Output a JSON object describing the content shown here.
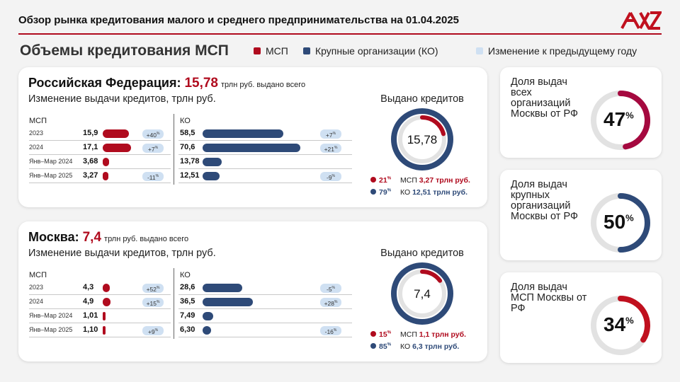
{
  "header": {
    "title": "Обзор рынка кредитования малого и среднего предпринимательства на 01.04.2025"
  },
  "section_title": "Объемы кредитования МСП",
  "legend": [
    {
      "label": "МСП",
      "color": "#b00b1e"
    },
    {
      "label": "Крупные организации (КО)",
      "color": "#2e4a78"
    },
    {
      "label": "Изменение к предыдущему году",
      "color": "#cfe0f2"
    }
  ],
  "colors": {
    "msp": "#b00b1e",
    "ko": "#2e4a78",
    "change": "#cfe0f2",
    "track": "#e2e2e2"
  },
  "chart_data": [
    {
      "type": "bar",
      "region": "Российская Федерация",
      "total": "15,78",
      "total_suffix": "трлн руб. выдано всего",
      "subtitle": "Изменение выдачи кредитов, трлн руб.",
      "col_msp": "МСП",
      "col_ko": "КО",
      "categories": [
        "2023",
        "2024",
        "Янв–Мар 2024",
        "Янв–Мар 2025"
      ],
      "series": [
        {
          "name": "МСП",
          "values": [
            15.9,
            17.1,
            3.68,
            3.27
          ],
          "labels": [
            "15,9",
            "17,1",
            "3,68",
            "3,27"
          ],
          "change": [
            "+40",
            "+7",
            "",
            "-11"
          ]
        },
        {
          "name": "КО",
          "values": [
            58.5,
            70.6,
            13.78,
            12.51
          ],
          "labels": [
            "58,5",
            "70,6",
            "13,78",
            "12,51"
          ],
          "change": [
            "+7",
            "+21",
            "",
            "-9"
          ]
        }
      ],
      "donut": {
        "title": "Выдано кредитов",
        "center": "15,78",
        "msp_share": 21,
        "ko_share": 79,
        "msp_pct": "21",
        "ko_pct": "79",
        "msp_text": "МСП",
        "msp_amount": "3,27 трлн руб.",
        "ko_text": "КО",
        "ko_amount": "12,51 трлн руб."
      }
    },
    {
      "type": "bar",
      "region": "Москва",
      "total": "7,4",
      "total_suffix": "трлн руб. выдано всего",
      "subtitle": "Изменение выдачи кредитов, трлн руб.",
      "col_msp": "МСП",
      "col_ko": "КО",
      "categories": [
        "2023",
        "2024",
        "Янв–Мар 2024",
        "Янв–Мар 2025"
      ],
      "series": [
        {
          "name": "МСП",
          "values": [
            4.3,
            4.9,
            1.01,
            1.1
          ],
          "labels": [
            "4,3",
            "4,9",
            "1,01",
            "1,10"
          ],
          "change": [
            "+52",
            "+15",
            "",
            "+9"
          ]
        },
        {
          "name": "КО",
          "values": [
            28.6,
            36.5,
            7.49,
            6.3
          ],
          "labels": [
            "28,6",
            "36,5",
            "7,49",
            "6,30"
          ],
          "change": [
            "-5",
            "+28",
            "",
            "-16"
          ]
        }
      ],
      "donut": {
        "title": "Выдано кредитов",
        "center": "7,4",
        "msp_share": 15,
        "ko_share": 85,
        "msp_pct": "15",
        "ko_pct": "85",
        "msp_text": "МСП",
        "msp_amount": "1,1 трлн руб.",
        "ko_text": "КО",
        "ko_amount": "6,3 трлн руб."
      }
    },
    {
      "type": "pie",
      "label": "Доля выдач всех организаций Москвы от РФ",
      "value": 47,
      "value_text": "47",
      "color": "#a5093f"
    },
    {
      "type": "pie",
      "label": "Доля выдач крупных организаций Москвы от РФ",
      "value": 50,
      "value_text": "50",
      "color": "#2e4a78"
    },
    {
      "type": "pie",
      "label": "Доля выдач МСП Москвы от РФ",
      "value": 34,
      "value_text": "34",
      "color": "#c0101e"
    }
  ]
}
